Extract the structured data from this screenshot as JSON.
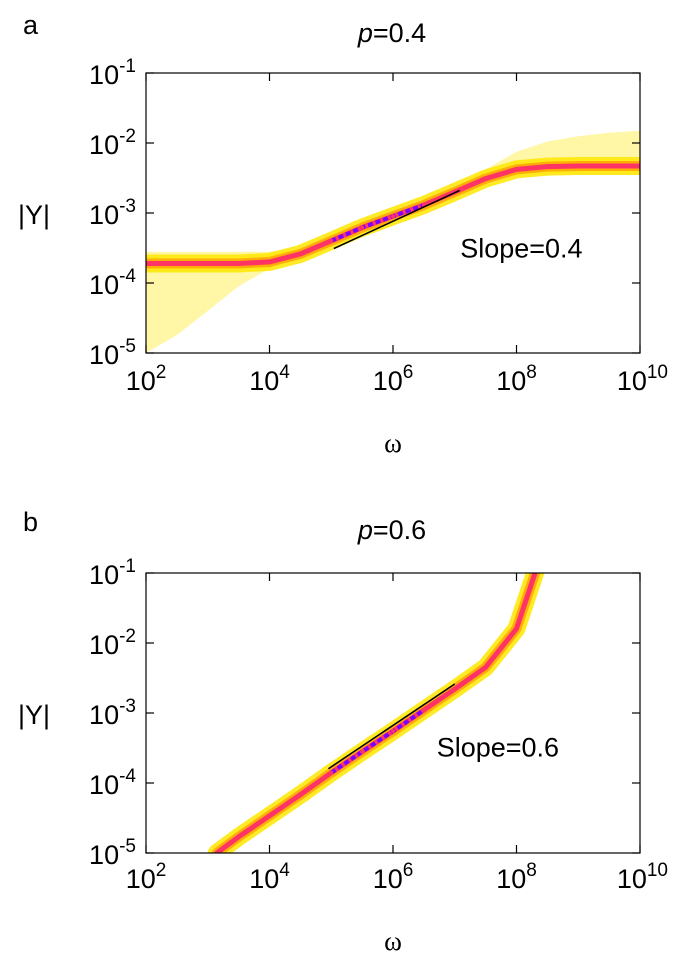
{
  "chart_data": [
    {
      "type": "line",
      "panel_label": "a",
      "title_var": "p",
      "title_value": "=0.4",
      "xlabel": "ω",
      "ylabel": "|Y|",
      "xscale": "log",
      "yscale": "log",
      "xlim": [
        100,
        10000000000
      ],
      "ylim": [
        1e-05,
        0.1
      ],
      "x_ticks": [
        {
          "base": "10",
          "exp": "2"
        },
        {
          "base": "10",
          "exp": "4"
        },
        {
          "base": "10",
          "exp": "6"
        },
        {
          "base": "10",
          "exp": "8"
        },
        {
          "base": "10",
          "exp": "10"
        }
      ],
      "y_ticks": [
        {
          "base": "10",
          "exp": "-1"
        },
        {
          "base": "10",
          "exp": "-2"
        },
        {
          "base": "10",
          "exp": "-3"
        },
        {
          "base": "10",
          "exp": "-4"
        },
        {
          "base": "10",
          "exp": "-5"
        }
      ],
      "series": [
        {
          "x": [
            100,
            316,
            1000,
            3162,
            10000,
            31623,
            100000,
            316228,
            1000000,
            3162278,
            10000000,
            31622777,
            100000000,
            316227766,
            1000000000,
            3162277660,
            10000000000
          ],
          "y": [
            0.00019,
            0.00019,
            0.00019,
            0.00019,
            0.0002,
            0.00026,
            0.0004,
            0.00062,
            0.0009,
            0.0013,
            0.002,
            0.0031,
            0.0042,
            0.0046,
            0.0047,
            0.0047,
            0.0047
          ]
        }
      ],
      "spread_low": [
        1e-05,
        1.8e-05,
        4e-05,
        9e-05,
        0.00016,
        0.00024,
        0.00038,
        0.0006,
        0.00088,
        0.00128,
        0.00195,
        0.0028,
        0.0034,
        0.0036,
        0.0037,
        0.0037,
        0.0037
      ],
      "spread_high": [
        0.00028,
        0.00028,
        0.00028,
        0.00028,
        0.00028,
        0.00031,
        0.00042,
        0.00064,
        0.00092,
        0.00133,
        0.0021,
        0.0042,
        0.0075,
        0.0105,
        0.0125,
        0.014,
        0.015
      ],
      "annotation": {
        "text": "Slope=0.4",
        "x": 120000000,
        "y": 0.00032
      },
      "slope_line": {
        "x": [
          110000,
          12000000
        ],
        "y": [
          0.00031,
          0.0021
        ]
      },
      "colors": {
        "ensemble": "#ffe600",
        "outline": "#ff9a00",
        "mean": "#ff3366",
        "core": "#7a00ff"
      }
    },
    {
      "type": "line",
      "panel_label": "b",
      "title_var": "p",
      "title_value": "=0.6",
      "xlabel": "ω",
      "ylabel": "|Y|",
      "xscale": "log",
      "yscale": "log",
      "xlim": [
        100,
        10000000000
      ],
      "ylim": [
        1e-05,
        0.1
      ],
      "x_ticks": [
        {
          "base": "10",
          "exp": "2"
        },
        {
          "base": "10",
          "exp": "4"
        },
        {
          "base": "10",
          "exp": "6"
        },
        {
          "base": "10",
          "exp": "8"
        },
        {
          "base": "10",
          "exp": "10"
        }
      ],
      "y_ticks": [
        {
          "base": "10",
          "exp": "-1"
        },
        {
          "base": "10",
          "exp": "-2"
        },
        {
          "base": "10",
          "exp": "-3"
        },
        {
          "base": "10",
          "exp": "-4"
        },
        {
          "base": "10",
          "exp": "-5"
        }
      ],
      "series": [
        {
          "x": [
            1400,
            3162,
            10000,
            31623,
            100000,
            316228,
            1000000,
            3162278,
            10000000,
            31622777,
            100000000,
            200000000
          ],
          "y": [
            1e-05,
            1.7e-05,
            3.4e-05,
            6.8e-05,
            0.00014,
            0.00028,
            0.00055,
            0.0011,
            0.0022,
            0.0045,
            0.016,
            0.1
          ]
        }
      ],
      "spread_low": [
        8e-06,
        1.4e-05,
        3e-05,
        6.2e-05,
        0.00013,
        0.00026,
        0.00052,
        0.00104,
        0.0021,
        0.0042,
        0.013,
        0.065
      ],
      "spread_high": [
        1.2e-05,
        2e-05,
        3.8e-05,
        7.4e-05,
        0.00015,
        0.0003,
        0.00058,
        0.00116,
        0.0023,
        0.0049,
        0.02,
        0.1
      ],
      "annotation": {
        "text": "Slope=0.6",
        "x": 50000000,
        "y": 0.00033
      },
      "slope_line": {
        "x": [
          90000,
          10000000
        ],
        "y": [
          0.00016,
          0.0026
        ]
      },
      "colors": {
        "ensemble": "#ffe600",
        "outline": "#ff9a00",
        "mean": "#ff3366",
        "core": "#7a00ff"
      }
    }
  ]
}
